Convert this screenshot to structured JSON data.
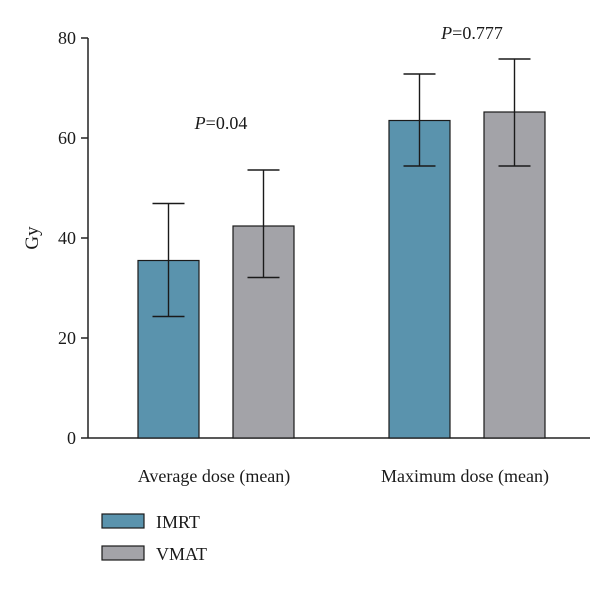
{
  "chart_data": {
    "type": "bar",
    "categories": [
      "Average dose (mean)",
      "Maximum dose (mean)"
    ],
    "series": [
      {
        "name": "IMRT",
        "color": "#5a93ad",
        "values": [
          35.5,
          63.5
        ],
        "error_low": [
          24.3,
          54.4
        ],
        "error_high": [
          46.9,
          72.8
        ]
      },
      {
        "name": "VMAT",
        "color": "#a3a3a8",
        "values": [
          42.4,
          65.2
        ],
        "error_low": [
          32.1,
          54.4
        ],
        "error_high": [
          53.6,
          75.8
        ]
      }
    ],
    "annotations": [
      {
        "category_index": 0,
        "prefix": "P",
        "text": "=0.04",
        "y": 63
      },
      {
        "category_index": 1,
        "prefix": "P",
        "text": "=0.777",
        "y": 81
      }
    ],
    "title": "",
    "xlabel": "",
    "ylabel": "Gy",
    "ylim": [
      0,
      80
    ],
    "yticks": [
      "0",
      "20",
      "40",
      "60",
      "80"
    ],
    "grid": false,
    "legend_position": "bottom-left"
  }
}
